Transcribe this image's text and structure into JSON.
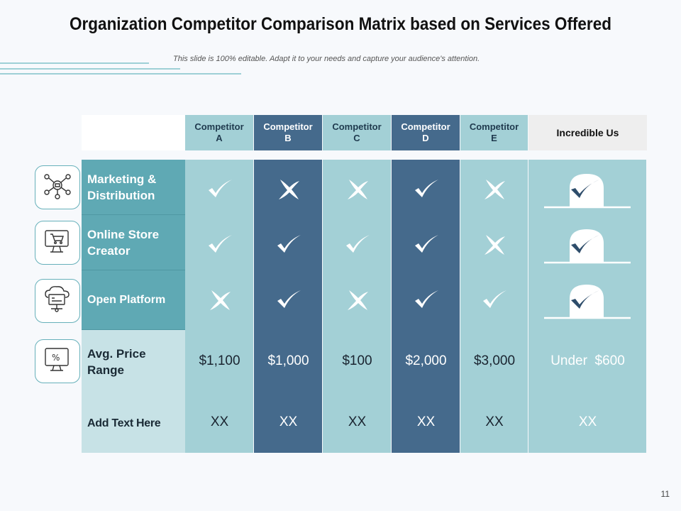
{
  "title": "Organization Competitor Comparison Matrix based on Services Offered",
  "subtitle": "This slide is 100% editable. Adapt it to your needs and capture your audience's attention.",
  "page_number": "11",
  "columns": [
    {
      "label": "Competitor\nA",
      "tone": "light"
    },
    {
      "label": "Competitor\nB",
      "tone": "dark"
    },
    {
      "label": "Competitor\nC",
      "tone": "light"
    },
    {
      "label": "Competitor\nD",
      "tone": "dark"
    },
    {
      "label": "Competitor\nE",
      "tone": "light"
    },
    {
      "label": "Incredible Us",
      "tone": "us"
    }
  ],
  "rows": [
    {
      "label": "Marketing & Distribution",
      "icon": "marketing-network-icon",
      "marks": [
        "check",
        "cross",
        "cross",
        "check",
        "cross",
        "check"
      ]
    },
    {
      "label": "Online Store Creator",
      "icon": "online-cart-monitor-icon",
      "marks": [
        "check",
        "check",
        "check",
        "check",
        "cross",
        "check"
      ]
    },
    {
      "label": "Open Platform",
      "icon": "cloud-platform-icon",
      "marks": [
        "cross",
        "check",
        "cross",
        "check",
        "check",
        "check"
      ]
    },
    {
      "label": "Avg. Price Range",
      "icon": "percent-monitor-icon",
      "values": [
        "$1,100",
        "$1,000",
        "$100",
        "$2,000",
        "$3,000",
        "Under  $600"
      ]
    },
    {
      "label": "Add Text Here",
      "values": [
        "XX",
        "XX",
        "XX",
        "XX",
        "XX",
        "XX"
      ]
    }
  ],
  "colors": {
    "light": "#a3d0d6",
    "dark": "#456a8c",
    "teal": "#5fa9b4",
    "pale": "#c7e2e6",
    "us_header": "#eeeeee"
  }
}
